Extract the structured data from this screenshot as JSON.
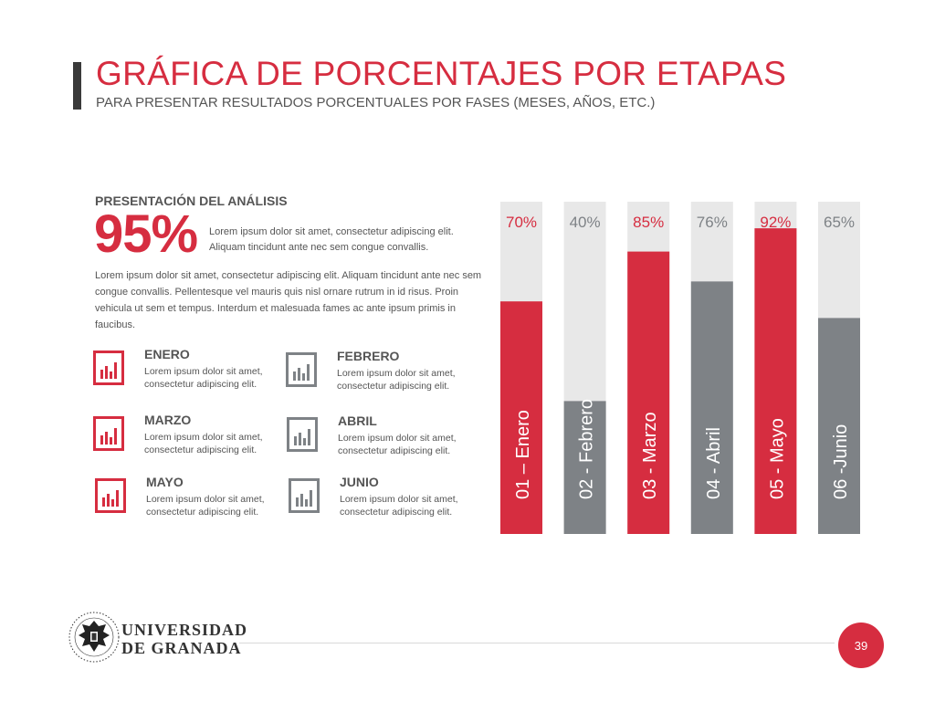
{
  "header": {
    "title": "GRÁFICA DE PORCENTAJES POR ETAPAS",
    "subtitle": "PARA PRESENTAR RESULTADOS PORCENTUALES POR FASES (MESES, AÑOS, ETC.)"
  },
  "analysis": {
    "section_title": "PRESENTACIÓN DEL ANÁLISIS",
    "big_value": "95%",
    "big_desc": "Lorem ipsum dolor sit amet, consectetur adipiscing elit. Aliquam tincidunt ante nec sem congue convallis.",
    "paragraph": "Lorem ipsum dolor sit amet, consectetur adipiscing elit. Aliquam tincidunt ante nec sem congue convallis. Pellentesque vel mauris quis nisl ornare rutrum in id risus. Proin vehicula ut sem et tempus. Interdum et malesuada fames ac ante ipsum primis in faucibus."
  },
  "months": [
    {
      "name": "ENERO",
      "desc": "Lorem ipsum dolor sit amet, consectetur adipiscing elit.",
      "color": "red",
      "icon": "bar-chart-icon"
    },
    {
      "name": "FEBRERO",
      "desc": "Lorem ipsum dolor sit amet, consectetur adipiscing elit.",
      "color": "gray",
      "icon": "bar-chart-icon"
    },
    {
      "name": "MARZO",
      "desc": "Lorem ipsum dolor sit amet, consectetur adipiscing elit.",
      "color": "red",
      "icon": "bar-chart-icon"
    },
    {
      "name": "ABRIL",
      "desc": "Lorem ipsum dolor sit amet, consectetur adipiscing elit.",
      "color": "gray",
      "icon": "bar-chart-icon"
    },
    {
      "name": "MAYO",
      "desc": "Lorem ipsum dolor sit amet, consectetur adipiscing elit.",
      "color": "red",
      "icon": "bar-chart-icon"
    },
    {
      "name": "JUNIO",
      "desc": "Lorem ipsum dolor sit amet, consectetur adipiscing elit.",
      "color": "gray",
      "icon": "bar-chart-icon"
    }
  ],
  "colors": {
    "accent": "#d62d40",
    "gray": "#7e8286",
    "track": "#e8e8e8",
    "text": "#555555"
  },
  "chart_data": {
    "type": "bar",
    "categories": [
      "01 – Enero",
      "02 - Febrero",
      "03 - Marzo",
      "04 - Abril",
      "05 - Mayo",
      "06 -Junio"
    ],
    "values": [
      70,
      40,
      85,
      76,
      92,
      65
    ],
    "value_labels": [
      "70%",
      "40%",
      "85%",
      "76%",
      "92%",
      "65%"
    ],
    "bar_colors": [
      "#d62d40",
      "#7e8286",
      "#d62d40",
      "#7e8286",
      "#d62d40",
      "#7e8286"
    ],
    "label_colors": [
      "#d62d40",
      "#7e8286",
      "#d62d40",
      "#7e8286",
      "#d62d40",
      "#7e8286"
    ],
    "ylim": [
      0,
      100
    ],
    "title": "",
    "xlabel": "",
    "ylabel": ""
  },
  "footer": {
    "university_line1": "UNIVERSIDAD",
    "university_line2": "DE GRANADA",
    "page_number": "39"
  }
}
